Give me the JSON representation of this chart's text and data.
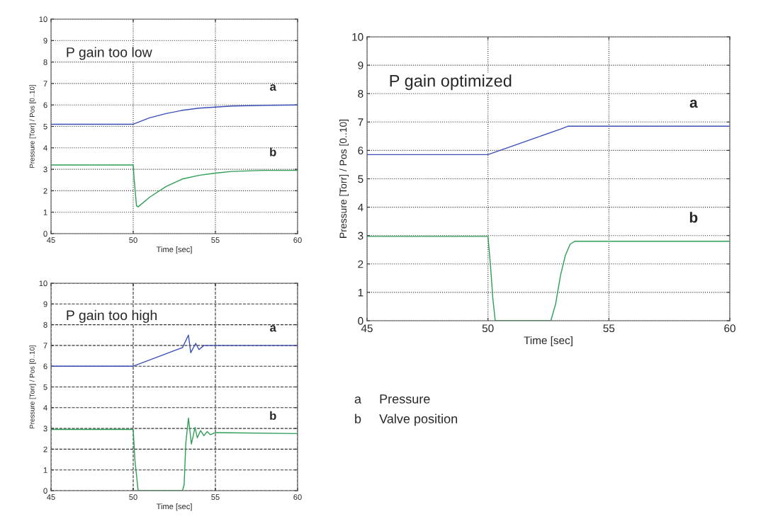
{
  "chart_data": [
    {
      "type": "line",
      "title": "P gain too low",
      "xlabel": "Time [sec]",
      "ylabel": "Pressure [Torr] / Pos [0..10]",
      "xlim": [
        45,
        60
      ],
      "xticks": [
        45,
        50,
        55,
        60
      ],
      "ylim": [
        0,
        10
      ],
      "yticks": [
        0,
        1,
        2,
        3,
        4,
        5,
        6,
        7,
        8,
        9,
        10
      ],
      "grid": true,
      "series": [
        {
          "name": "a",
          "color": "#3b4fb8",
          "x": [
            45,
            50,
            50.5,
            51,
            52,
            53,
            54,
            55,
            56,
            58,
            60
          ],
          "values": [
            5.1,
            5.1,
            5.25,
            5.4,
            5.6,
            5.75,
            5.85,
            5.9,
            5.95,
            5.98,
            6.0
          ]
        },
        {
          "name": "b",
          "color": "#2e9e55",
          "x": [
            45,
            50,
            50.05,
            50.2,
            50.3,
            51,
            52,
            53,
            54,
            55,
            56,
            58,
            60
          ],
          "values": [
            3.2,
            3.2,
            2.6,
            1.3,
            1.25,
            1.7,
            2.2,
            2.55,
            2.72,
            2.82,
            2.9,
            2.95,
            2.95
          ]
        }
      ]
    },
    {
      "type": "line",
      "title": "P gain optimized",
      "xlabel": "Time [sec]",
      "ylabel": "Pressure [Torr] / Pos [0..10]",
      "xlim": [
        45,
        60
      ],
      "xticks": [
        45,
        50,
        55,
        60
      ],
      "ylim": [
        0,
        10
      ],
      "yticks": [
        0,
        1,
        2,
        3,
        4,
        5,
        6,
        7,
        8,
        9,
        10
      ],
      "grid": true,
      "annotations": [
        "a     Pressure",
        "b     Valve position"
      ],
      "series": [
        {
          "name": "a",
          "color": "#3b4fb8",
          "x": [
            45,
            50,
            50.5,
            51,
            52,
            53,
            53.3,
            60
          ],
          "values": [
            5.85,
            5.85,
            6.0,
            6.15,
            6.45,
            6.75,
            6.85,
            6.85
          ]
        },
        {
          "name": "b",
          "color": "#2e9e55",
          "x": [
            45,
            50,
            50.1,
            50.2,
            50.3,
            52.6,
            52.8,
            53.0,
            53.2,
            53.4,
            53.6,
            60
          ],
          "values": [
            2.97,
            2.97,
            2.0,
            0.8,
            0,
            0,
            0.6,
            1.6,
            2.3,
            2.7,
            2.8,
            2.8
          ]
        }
      ]
    },
    {
      "type": "line",
      "title": "P gain too high",
      "xlabel": "Time [sec]",
      "ylabel": "Pressure [Torr] / Pos [0..10]",
      "xlim": [
        45,
        60
      ],
      "xticks": [
        45,
        50,
        55,
        60
      ],
      "ylim": [
        0,
        10
      ],
      "yticks": [
        0,
        1,
        2,
        3,
        4,
        5,
        6,
        7,
        8,
        9,
        10
      ],
      "grid": true,
      "series": [
        {
          "name": "a",
          "color": "#3b4fb8",
          "x": [
            45,
            50,
            51,
            52,
            52.5,
            53,
            53.36,
            53.5,
            53.8,
            54.0,
            54.3,
            60
          ],
          "values": [
            6.0,
            6.0,
            6.3,
            6.6,
            6.75,
            6.9,
            7.5,
            6.65,
            7.1,
            6.8,
            7.0,
            7.0
          ]
        },
        {
          "name": "b",
          "color": "#2e9e55",
          "x": [
            45,
            50,
            50.1,
            50.3,
            53.0,
            53.1,
            53.2,
            53.36,
            53.54,
            53.76,
            53.9,
            54.1,
            54.3,
            54.5,
            54.7,
            55,
            60
          ],
          "values": [
            2.95,
            2.95,
            1.5,
            0,
            0,
            0.3,
            2.3,
            3.5,
            2.25,
            3.05,
            2.55,
            2.9,
            2.65,
            2.85,
            2.7,
            2.8,
            2.75
          ]
        }
      ]
    }
  ]
}
